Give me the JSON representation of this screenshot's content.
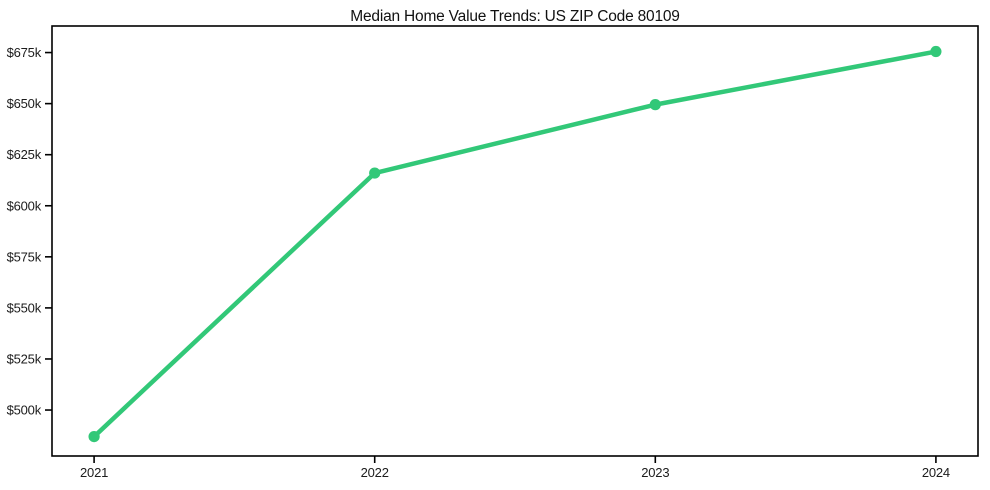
{
  "chart_data": {
    "type": "line",
    "title": "Median Home Value Trends: US ZIP Code 80109",
    "xlabel": "",
    "ylabel": "",
    "x": [
      2021,
      2022,
      2023,
      2024
    ],
    "x_tick_labels": [
      "2021",
      "2022",
      "2023",
      "2024"
    ],
    "series": [
      {
        "name": "Median Home Value",
        "values": [
          487000,
          616000,
          649500,
          675500
        ]
      }
    ],
    "y_tick_values": [
      500000,
      525000,
      550000,
      575000,
      600000,
      625000,
      650000,
      675000
    ],
    "y_tick_labels": [
      "$500k",
      "$525k",
      "$550k",
      "$575k",
      "$600k",
      "$625k",
      "$650k",
      "$675k"
    ],
    "xlim": [
      2020.85,
      2024.15
    ],
    "ylim": [
      477500,
      688000
    ],
    "grid": false,
    "legend": "none",
    "marker": "circle",
    "line_color": "#32c878",
    "axis_color": "#000000",
    "text_color": "#1c1c1c",
    "background_color": "#ffffff"
  }
}
